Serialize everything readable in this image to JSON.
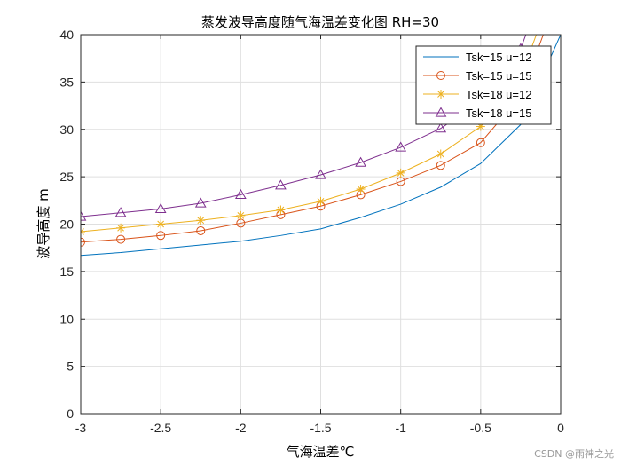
{
  "chart_data": {
    "type": "line",
    "title": "蒸发波导高度随气海温差变化图 RH=30",
    "xlabel": "气海温差℃",
    "ylabel": "波导高度 m",
    "xlim": [
      -3,
      0
    ],
    "ylim": [
      0,
      40
    ],
    "xticks": [
      -3,
      -2.5,
      -2,
      -1.5,
      -1,
      -0.5,
      0
    ],
    "xtick_labels": [
      "-3",
      "-2.5",
      "-2",
      "-1.5",
      "-1",
      "-0.5",
      "0"
    ],
    "yticks": [
      0,
      5,
      10,
      15,
      20,
      25,
      30,
      35,
      40
    ],
    "ytick_labels": [
      "0",
      "5",
      "10",
      "15",
      "20",
      "25",
      "30",
      "35",
      "40"
    ],
    "grid": true,
    "legend_position": "top-right",
    "x": [
      -3,
      -2.75,
      -2.5,
      -2.25,
      -2,
      -1.75,
      -1.5,
      -1.25,
      -1,
      -0.75,
      -0.5,
      -0.25,
      0
    ],
    "series": [
      {
        "name": "Tsk=15 u=12",
        "color": "#0072BD",
        "marker": "none",
        "values": [
          16.7,
          17.0,
          17.4,
          17.8,
          18.2,
          18.8,
          19.5,
          20.7,
          22.1,
          23.9,
          26.4,
          30.5,
          40.0
        ]
      },
      {
        "name": "Tsk=15 u=15",
        "color": "#D95319",
        "marker": "circle",
        "values": [
          18.1,
          18.4,
          18.8,
          19.3,
          20.1,
          21.0,
          21.9,
          23.1,
          24.5,
          26.2,
          28.6,
          33.5,
          45.0
        ]
      },
      {
        "name": "Tsk=18 u=12",
        "color": "#EDB120",
        "marker": "asterisk",
        "values": [
          19.2,
          19.6,
          20.0,
          20.4,
          20.9,
          21.5,
          22.4,
          23.7,
          25.4,
          27.4,
          30.3,
          35.5,
          47.0
        ]
      },
      {
        "name": "Tsk=18 u=15",
        "color": "#7E2F8E",
        "marker": "triangle",
        "values": [
          20.8,
          21.2,
          21.6,
          22.2,
          23.1,
          24.1,
          25.2,
          26.5,
          28.1,
          30.1,
          32.9,
          38.5,
          50.0
        ]
      }
    ]
  },
  "watermark": "CSDN @雨神之光"
}
